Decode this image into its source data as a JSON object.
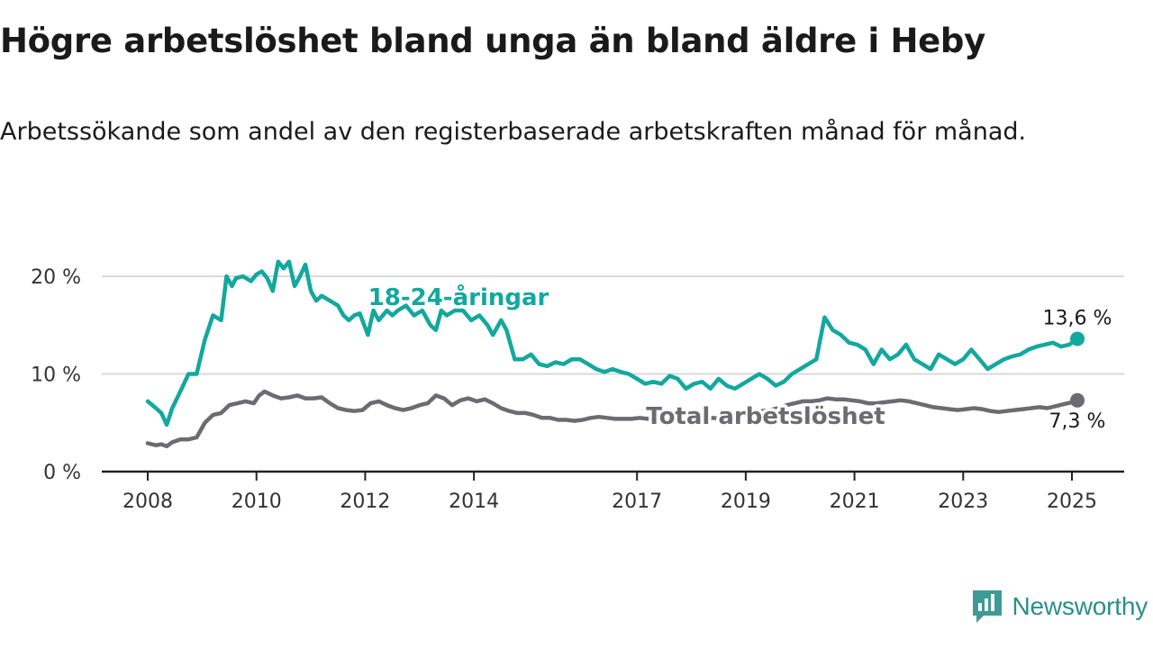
{
  "header": {
    "title": "Högre arbetslöshet bland unga än bland äldre i Heby",
    "subtitle": "Arbetssökande som andel av den registerbaserade arbetskraften månad för månad."
  },
  "brand": {
    "name": "Newsworthy",
    "icon": "newsworthy-logo-icon",
    "color": "#3f9a96"
  },
  "colors": {
    "youth": "#13a89e",
    "total": "#6c6a73",
    "grid": "#d9d9d9",
    "axis": "#222222"
  },
  "chart_data": {
    "type": "line",
    "title": "Högre arbetslöshet bland unga än bland äldre i Heby",
    "subtitle": "Arbetssökande som andel av den registerbaserade arbetskraften månad för månad.",
    "xlabel": "",
    "ylabel": "",
    "x_tick_labels": [
      "2008",
      "2010",
      "2012",
      "2014",
      "2017",
      "2019",
      "2021",
      "2023",
      "2025"
    ],
    "x_tick_values": [
      2008,
      2010,
      2012,
      2014,
      2017,
      2019,
      2021,
      2023,
      2025
    ],
    "y_tick_labels": [
      "0 %",
      "10 %",
      "20 %"
    ],
    "y_tick_values": [
      0,
      10,
      20
    ],
    "ylim": [
      0,
      20
    ],
    "grid": true,
    "series": [
      {
        "name": "18-24-åringar",
        "color": "#13a89e",
        "end_label": "13,6 %",
        "x": [
          2008.0,
          2008.15,
          2008.25,
          2008.35,
          2008.45,
          2008.6,
          2008.75,
          2008.9,
          2009.05,
          2009.2,
          2009.35,
          2009.45,
          2009.55,
          2009.62,
          2009.75,
          2009.9,
          2010.0,
          2010.1,
          2010.2,
          2010.3,
          2010.4,
          2010.5,
          2010.6,
          2010.7,
          2010.8,
          2010.9,
          2011.0,
          2011.1,
          2011.2,
          2011.35,
          2011.5,
          2011.6,
          2011.7,
          2011.8,
          2011.9,
          2012.05,
          2012.15,
          2012.25,
          2012.4,
          2012.5,
          2012.6,
          2012.75,
          2012.9,
          2013.05,
          2013.2,
          2013.3,
          2013.4,
          2013.5,
          2013.65,
          2013.8,
          2013.95,
          2014.1,
          2014.25,
          2014.35,
          2014.5,
          2014.6,
          2014.75,
          2014.9,
          2015.05,
          2015.2,
          2015.35,
          2015.5,
          2015.65,
          2015.8,
          2015.95,
          2016.1,
          2016.25,
          2016.4,
          2016.55,
          2016.7,
          2016.85,
          2017.0,
          2017.15,
          2017.3,
          2017.45,
          2017.6,
          2017.75,
          2017.9,
          2018.05,
          2018.2,
          2018.35,
          2018.5,
          2018.65,
          2018.8,
          2018.95,
          2019.1,
          2019.25,
          2019.4,
          2019.55,
          2019.7,
          2019.85,
          2020.0,
          2020.15,
          2020.3,
          2020.45,
          2020.6,
          2020.75,
          2020.9,
          2021.05,
          2021.2,
          2021.35,
          2021.5,
          2021.65,
          2021.8,
          2021.95,
          2022.1,
          2022.25,
          2022.4,
          2022.55,
          2022.7,
          2022.85,
          2023.0,
          2023.15,
          2023.3,
          2023.45,
          2023.6,
          2023.75,
          2023.9,
          2024.05,
          2024.2,
          2024.35,
          2024.5,
          2024.65,
          2024.8,
          2024.95,
          2025.1
        ],
        "values": [
          7.2,
          6.5,
          6.0,
          4.8,
          6.5,
          8.2,
          10.0,
          10.0,
          13.5,
          16.0,
          15.5,
          20.0,
          19.0,
          19.8,
          20.0,
          19.5,
          20.2,
          20.5,
          19.8,
          18.5,
          21.5,
          20.8,
          21.5,
          19.0,
          20.0,
          21.2,
          18.5,
          17.5,
          18.0,
          17.5,
          17.0,
          16.0,
          15.5,
          16.0,
          16.2,
          14.0,
          16.5,
          15.5,
          16.5,
          16.0,
          16.5,
          17.0,
          16.0,
          16.5,
          15.0,
          14.5,
          16.5,
          16.0,
          16.5,
          16.5,
          15.5,
          16.0,
          15.0,
          14.0,
          15.5,
          14.5,
          11.5,
          11.5,
          12.0,
          11.0,
          10.8,
          11.2,
          11.0,
          11.5,
          11.5,
          11.0,
          10.5,
          10.2,
          10.5,
          10.2,
          10.0,
          9.5,
          9.0,
          9.2,
          9.0,
          9.8,
          9.5,
          8.5,
          9.0,
          9.2,
          8.5,
          9.5,
          8.8,
          8.5,
          9.0,
          9.5,
          10.0,
          9.5,
          8.8,
          9.2,
          10.0,
          10.5,
          11.0,
          11.5,
          15.8,
          14.5,
          14.0,
          13.2,
          13.0,
          12.5,
          11.0,
          12.5,
          11.5,
          12.0,
          13.0,
          11.5,
          11.0,
          10.5,
          12.0,
          11.5,
          11.0,
          11.5,
          12.5,
          11.5,
          10.5,
          11.0,
          11.5,
          11.8,
          12.0,
          12.5,
          12.8,
          13.0,
          13.2,
          12.8,
          13.0,
          13.6
        ]
      },
      {
        "name": "Total arbetslöshet",
        "color": "#6c6a73",
        "end_label": "7,3 %",
        "x": [
          2008.0,
          2008.15,
          2008.25,
          2008.35,
          2008.45,
          2008.6,
          2008.75,
          2008.9,
          2009.05,
          2009.2,
          2009.35,
          2009.5,
          2009.65,
          2009.8,
          2009.95,
          2010.05,
          2010.15,
          2010.3,
          2010.45,
          2010.6,
          2010.75,
          2010.9,
          2011.05,
          2011.2,
          2011.35,
          2011.5,
          2011.65,
          2011.8,
          2011.95,
          2012.1,
          2012.25,
          2012.4,
          2012.55,
          2012.7,
          2012.85,
          2013.0,
          2013.15,
          2013.3,
          2013.45,
          2013.6,
          2013.75,
          2013.9,
          2014.05,
          2014.2,
          2014.35,
          2014.5,
          2014.65,
          2014.8,
          2014.95,
          2015.1,
          2015.25,
          2015.4,
          2015.55,
          2015.7,
          2015.85,
          2016.0,
          2016.15,
          2016.3,
          2016.45,
          2016.6,
          2016.75,
          2016.9,
          2017.05,
          2017.2,
          2017.35,
          2017.5,
          2017.65,
          2017.8,
          2017.95,
          2018.1,
          2018.25,
          2018.4,
          2018.55,
          2018.7,
          2018.85,
          2019.0,
          2019.15,
          2019.3,
          2019.45,
          2019.6,
          2019.75,
          2019.9,
          2020.05,
          2020.2,
          2020.35,
          2020.5,
          2020.65,
          2020.8,
          2020.95,
          2021.1,
          2021.25,
          2021.4,
          2021.55,
          2021.7,
          2021.85,
          2022.0,
          2022.15,
          2022.3,
          2022.45,
          2022.6,
          2022.75,
          2022.9,
          2023.05,
          2023.2,
          2023.35,
          2023.5,
          2023.65,
          2023.8,
          2023.95,
          2024.1,
          2024.25,
          2024.4,
          2024.55,
          2024.7,
          2024.85,
          2025.0,
          2025.1
        ],
        "values": [
          2.9,
          2.7,
          2.8,
          2.6,
          3.0,
          3.3,
          3.3,
          3.5,
          5.0,
          5.8,
          6.0,
          6.8,
          7.0,
          7.2,
          7.0,
          7.8,
          8.2,
          7.8,
          7.5,
          7.6,
          7.8,
          7.5,
          7.5,
          7.6,
          7.0,
          6.5,
          6.3,
          6.2,
          6.3,
          7.0,
          7.2,
          6.8,
          6.5,
          6.3,
          6.5,
          6.8,
          7.0,
          7.8,
          7.5,
          6.8,
          7.3,
          7.5,
          7.2,
          7.4,
          7.0,
          6.5,
          6.2,
          6.0,
          6.0,
          5.8,
          5.5,
          5.5,
          5.3,
          5.3,
          5.2,
          5.3,
          5.5,
          5.6,
          5.5,
          5.4,
          5.4,
          5.4,
          5.5,
          5.4,
          5.5,
          5.4,
          5.6,
          5.5,
          5.5,
          5.3,
          5.4,
          5.5,
          5.4,
          5.6,
          5.6,
          5.8,
          6.0,
          6.2,
          6.3,
          6.5,
          6.8,
          7.0,
          7.2,
          7.2,
          7.3,
          7.5,
          7.4,
          7.4,
          7.3,
          7.2,
          7.0,
          7.0,
          7.1,
          7.2,
          7.3,
          7.2,
          7.0,
          6.8,
          6.6,
          6.5,
          6.4,
          6.3,
          6.4,
          6.5,
          6.4,
          6.2,
          6.1,
          6.2,
          6.3,
          6.4,
          6.5,
          6.6,
          6.5,
          6.7,
          6.9,
          7.1,
          7.3
        ]
      }
    ]
  }
}
